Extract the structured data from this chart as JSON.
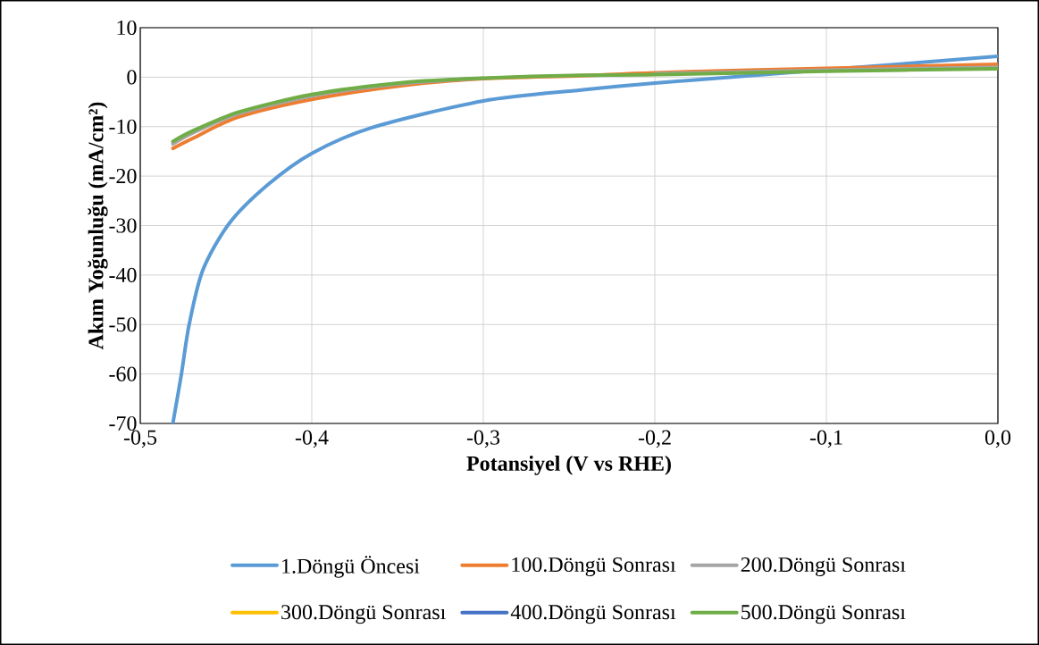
{
  "chart_data": {
    "type": "line",
    "xlabel": "Potansiyel (V vs RHE)",
    "ylabel": "Akım Yoğunluğu (mA/cm²)",
    "xlim": [
      -0.5,
      0.0
    ],
    "ylim": [
      -70,
      10
    ],
    "xticks": [
      {
        "value": -0.5,
        "label": "-0,5"
      },
      {
        "value": -0.4,
        "label": "-0,4"
      },
      {
        "value": -0.3,
        "label": "-0,3"
      },
      {
        "value": -0.2,
        "label": "-0,2"
      },
      {
        "value": -0.1,
        "label": "-0,1"
      },
      {
        "value": 0.0,
        "label": "0,0"
      }
    ],
    "yticks": [
      10,
      0,
      -10,
      -20,
      -30,
      -40,
      -50,
      -60,
      -70
    ],
    "grid": true,
    "legend": "bottom",
    "marker": "none",
    "line_style": "solid",
    "series": [
      {
        "name": "1.Döngü Öncesi",
        "color": "#5b9bd5",
        "x": [
          -0.481,
          -0.476,
          -0.4715,
          -0.4635,
          -0.448,
          -0.4255,
          -0.4,
          -0.365,
          -0.3,
          -0.243,
          -0.2,
          -0.1,
          0.0
        ],
        "values": [
          -70,
          -60,
          -50,
          -39,
          -29.5,
          -21.7,
          -15.4,
          -10.2,
          -4.8,
          -2.6,
          -1.2,
          1.5,
          4.2
        ]
      },
      {
        "name": "100.Döngü Sonrası",
        "color": "#ed7d31",
        "x": [
          -0.481,
          -0.469,
          -0.443,
          -0.4,
          -0.347,
          -0.3,
          -0.243,
          -0.2,
          -0.1,
          0.0
        ],
        "values": [
          -14.4,
          -12.3,
          -8.1,
          -4.5,
          -1.7,
          -0.3,
          0.3,
          0.9,
          1.8,
          2.6
        ]
      },
      {
        "name": "200.Döngü Sonrası",
        "color": "#a5a5a5",
        "x": [
          -0.481,
          -0.469,
          -0.443,
          -0.4,
          -0.347,
          -0.3,
          -0.243,
          -0.2,
          -0.1,
          0.0
        ],
        "values": [
          -13.5,
          -11.2,
          -7.4,
          -3.8,
          -1.3,
          -0.2,
          null,
          0.7,
          1.4,
          2.0
        ]
      },
      {
        "name": "300.Döngü Sonrası",
        "color": "#ffc000",
        "values": [
          null,
          null,
          null,
          null,
          null,
          null,
          null,
          null,
          null,
          null
        ]
      },
      {
        "name": "400.Döngü Sonrası",
        "color": "#4472c4",
        "values": [
          null,
          null,
          null,
          null,
          null,
          null,
          null,
          null,
          null,
          null
        ]
      },
      {
        "name": "500.Döngü Sonrası",
        "color": "#70ad47",
        "x": [
          -0.481,
          -0.469,
          -0.443,
          -0.4,
          -0.347,
          -0.3,
          -0.243,
          -0.2,
          -0.1,
          0.0
        ],
        "values": [
          -13.0,
          -10.8,
          -7.1,
          -3.5,
          -1.1,
          -0.2,
          0.4,
          0.5,
          1.2,
          1.7
        ]
      }
    ]
  }
}
